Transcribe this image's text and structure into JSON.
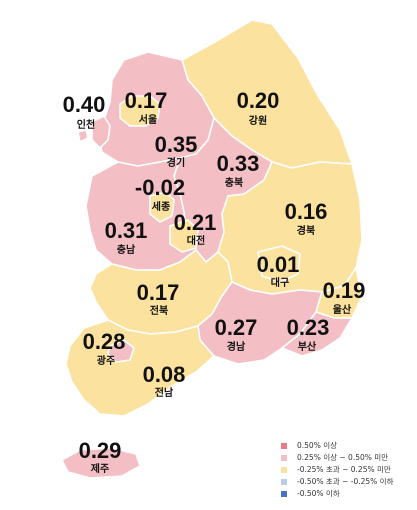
{
  "colors": {
    "high": "#ea7b86",
    "mid": "#f3bec4",
    "flat": "#fbe29f",
    "low": "#b9cce9",
    "vlow": "#4472c4"
  },
  "regions": {
    "incheon": {
      "name": "인천",
      "value": "0.40"
    },
    "seoul": {
      "name": "서울",
      "value": "0.17"
    },
    "gyeonggi": {
      "name": "경기",
      "value": "0.35"
    },
    "gangwon": {
      "name": "강원",
      "value": "0.20"
    },
    "chungbuk": {
      "name": "충북",
      "value": "0.33"
    },
    "sejong": {
      "name": "세종",
      "value": "-0.02"
    },
    "chungnam": {
      "name": "충남",
      "value": "0.31"
    },
    "daejeon": {
      "name": "대전",
      "value": "0.21"
    },
    "gyeongbuk": {
      "name": "경북",
      "value": "0.16"
    },
    "daegu": {
      "name": "대구",
      "value": "0.01"
    },
    "ulsan": {
      "name": "울산",
      "value": "0.19"
    },
    "jeonbuk": {
      "name": "전북",
      "value": "0.17"
    },
    "gwangju": {
      "name": "광주",
      "value": "0.28"
    },
    "gyeongnam": {
      "name": "경남",
      "value": "0.27"
    },
    "busan": {
      "name": "부산",
      "value": "0.23"
    },
    "jeonnam": {
      "name": "전남",
      "value": "0.08"
    },
    "jeju": {
      "name": "제주",
      "value": "0.29"
    }
  },
  "legend": [
    {
      "label": "0.50% 이상",
      "color": "#ea7b86"
    },
    {
      "label": "0.25% 이상 ~ 0.50% 미만",
      "color": "#f3bec4"
    },
    {
      "label": "-0.25% 초과 ~ 0.25% 미만",
      "color": "#fbe29f"
    },
    {
      "label": "-0.50% 초과 ~ -0.25% 이하",
      "color": "#b9cce9"
    },
    {
      "label": "-0.50% 이하",
      "color": "#4472c4"
    }
  ]
}
